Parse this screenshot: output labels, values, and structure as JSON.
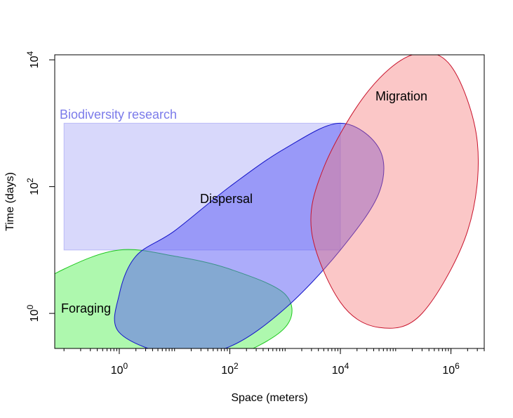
{
  "chart_data": {
    "type": "area",
    "xlabel": "Space (meters)",
    "ylabel": "Time (days)",
    "xscale": "log10",
    "yscale": "log10",
    "xlim": [
      0.068,
      4000000
    ],
    "ylim": [
      0.28,
      12000
    ],
    "x_ticks": [
      {
        "value": 1,
        "base": "10",
        "exp": "0"
      },
      {
        "value": 100,
        "base": "10",
        "exp": "2"
      },
      {
        "value": 10000,
        "base": "10",
        "exp": "4"
      },
      {
        "value": 1000000,
        "base": "10",
        "exp": "6"
      }
    ],
    "y_ticks": [
      {
        "value": 1,
        "base": "10",
        "exp": "0"
      },
      {
        "value": 100,
        "base": "10",
        "exp": "2"
      },
      {
        "value": 10000,
        "base": "10",
        "exp": "4"
      }
    ],
    "regions": [
      {
        "name": "Biodiversity research",
        "shape": "rectangle",
        "x_range": [
          0.1,
          10000
        ],
        "y_range": [
          10,
          1000
        ],
        "fill": "#7f7ff2",
        "fill_opacity": 0.3,
        "stroke": "#8c8cf2",
        "label_color": "#7b7bea"
      },
      {
        "name": "Foraging",
        "shape": "ellipse",
        "polygon": [
          [
            0.001,
            0.07
          ],
          [
            0.01,
            0.05
          ],
          [
            0.1,
            0.06
          ],
          [
            1,
            0.12
          ],
          [
            10,
            0.18
          ],
          [
            100,
            0.2
          ],
          [
            1000,
            0.6
          ],
          [
            1000,
            2
          ],
          [
            100,
            5
          ],
          [
            10,
            8
          ],
          [
            1,
            10
          ],
          [
            0.1,
            5
          ],
          [
            0.01,
            1.5
          ],
          [
            0.001,
            0.4
          ]
        ],
        "fill": "#5ef25e",
        "fill_opacity": 0.5,
        "stroke": "#1ec81e",
        "label_color": "#000000"
      },
      {
        "name": "Dispersal",
        "shape": "ellipse",
        "polygon": [
          [
            1,
            0.5
          ],
          [
            10,
            0.22
          ],
          [
            100,
            0.3
          ],
          [
            1000,
            1.2
          ],
          [
            10000,
            10
          ],
          [
            50000,
            80
          ],
          [
            50000,
            400
          ],
          [
            10000,
            1000
          ],
          [
            1000,
            400
          ],
          [
            100,
            100
          ],
          [
            10,
            20
          ],
          [
            2,
            8
          ],
          [
            1,
            2
          ]
        ],
        "fill": "#5a5af5",
        "fill_opacity": 0.5,
        "stroke": "#1414c8",
        "label_color": "#000000"
      },
      {
        "name": "Migration",
        "shape": "ellipse",
        "polygon": [
          [
            3000,
            20
          ],
          [
            10000,
            1.5
          ],
          [
            50000,
            0.6
          ],
          [
            300000,
            1
          ],
          [
            2000000,
            20
          ],
          [
            3000000,
            500
          ],
          [
            1000000,
            8000
          ],
          [
            200000,
            12000
          ],
          [
            30000,
            3000
          ],
          [
            5000,
            200
          ]
        ],
        "fill": "#f57272",
        "fill_opacity": 0.4,
        "stroke": "#c8142d",
        "label_color": "#000000"
      }
    ],
    "grid": false,
    "legend": "none"
  }
}
